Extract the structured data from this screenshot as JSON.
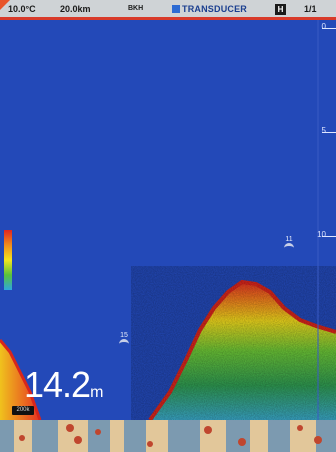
{
  "status_bar": {
    "water_temp": "10.0°C",
    "distance": "20.0km",
    "mode_label": "BKH",
    "source_label": "TRANSDUCER",
    "h_label": "H",
    "page_indicator": "1/1"
  },
  "depth_scale": {
    "ticks": [
      "0",
      "5",
      "10"
    ]
  },
  "fish_targets": [
    {
      "label": "11"
    },
    {
      "label": "15"
    }
  ],
  "depth_readout": {
    "value": "14.2",
    "unit": "m"
  },
  "frequency_badge": "200k",
  "colors": {
    "water": "#2349b8",
    "status_accent": "#d83a2a"
  },
  "icons": [
    "transducer-icon",
    "fish-arc-icon"
  ]
}
